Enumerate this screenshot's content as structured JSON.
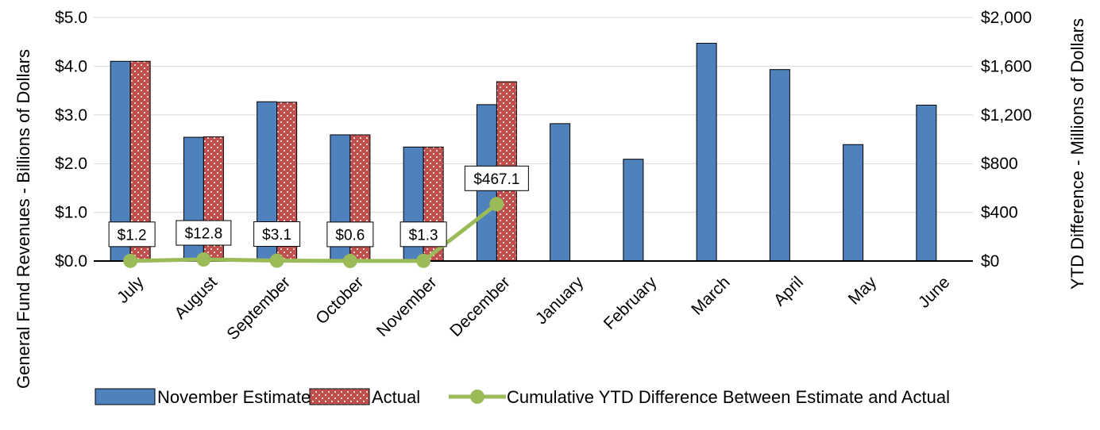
{
  "chart_data": {
    "type": "bar",
    "categories": [
      "July",
      "August",
      "September",
      "October",
      "November",
      "December",
      "January",
      "February",
      "March",
      "April",
      "May",
      "June"
    ],
    "series": [
      {
        "name": "November Estimate",
        "type": "bar",
        "axis": "left",
        "values": [
          4.1,
          2.54,
          3.27,
          2.59,
          2.34,
          3.21,
          2.82,
          2.09,
          4.47,
          3.93,
          2.39,
          3.2
        ]
      },
      {
        "name": "Actual",
        "type": "bar",
        "axis": "left",
        "values": [
          4.1,
          2.55,
          3.26,
          2.59,
          2.34,
          3.68,
          null,
          null,
          null,
          null,
          null,
          null
        ]
      },
      {
        "name": "Cumulative YTD Difference Between Estimate and Actual",
        "type": "line",
        "axis": "right",
        "values": [
          1.2,
          12.8,
          3.1,
          0.6,
          1.3,
          467.1,
          null,
          null,
          null,
          null,
          null,
          null
        ]
      }
    ],
    "data_labels": [
      "$1.2",
      "$12.8",
      "$3.1",
      "$0.6",
      "$1.3",
      "$467.1"
    ],
    "left_axis": {
      "title": "General Fund Revenues - Billions of Dollars",
      "range": [
        0,
        5
      ],
      "ticks": [
        "$0.0",
        "$1.0",
        "$2.0",
        "$3.0",
        "$4.0",
        "$5.0"
      ]
    },
    "right_axis": {
      "title": "YTD Difference - Millions of Dollars",
      "range": [
        0,
        2000
      ],
      "ticks": [
        "$0",
        "$400",
        "$800",
        "$1,200",
        "$1,600",
        "$2,000"
      ]
    },
    "grid": true,
    "legend_position": "bottom",
    "colors": {
      "estimate": "#4f81bd",
      "actual": "#c0504d",
      "line": "#9bbb59"
    }
  }
}
